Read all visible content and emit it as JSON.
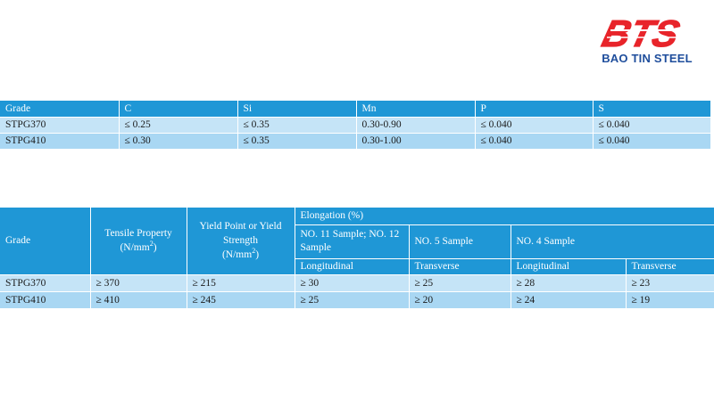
{
  "logo": {
    "mark": "BTS",
    "caption": "BAO TIN STEEL",
    "colors": {
      "mark": "#e8242a",
      "caption": "#1f4e9c"
    }
  },
  "chemical_table": {
    "headers": [
      "Grade",
      "C",
      "Si",
      "Mn",
      "P",
      "S"
    ],
    "rows": [
      [
        "STPG370",
        "≤ 0.25",
        "≤ 0.35",
        "0.30-0.90",
        "≤ 0.040",
        "≤ 0.040"
      ],
      [
        "STPG410",
        "≤ 0.30",
        "≤ 0.35",
        "0.30-1.00",
        "≤ 0.040",
        "≤ 0.040"
      ]
    ]
  },
  "mechanical_table": {
    "grade_header": "Grade",
    "tensile_header": "Tensile Property",
    "tensile_unit": "(N/mm",
    "yield_header": "Yield Point or Yield Strength",
    "yield_unit": "(N/mm",
    "unit_sup": "2",
    "unit_close": ")",
    "elongation_header": "Elongation (%)",
    "sample_headers": [
      "NO. 11 Sample; NO. 12 Sample",
      "NO. 5 Sample",
      "NO. 4 Sample"
    ],
    "direction_headers": [
      "Longitudinal",
      "Transverse",
      "Longitudinal",
      "Transverse"
    ],
    "rows": [
      [
        "STPG370",
        "≥ 370",
        "≥ 215",
        "≥ 30",
        "≥ 25",
        "≥ 28",
        "≥ 23"
      ],
      [
        "STPG410",
        "≥ 410",
        "≥ 245",
        "≥ 25",
        "≥ 20",
        "≥ 24",
        "≥ 19"
      ]
    ]
  },
  "colors": {
    "header_bg": "#1f97d6",
    "row_light": "#c5e4f7",
    "row_dark": "#a9d7f3"
  }
}
